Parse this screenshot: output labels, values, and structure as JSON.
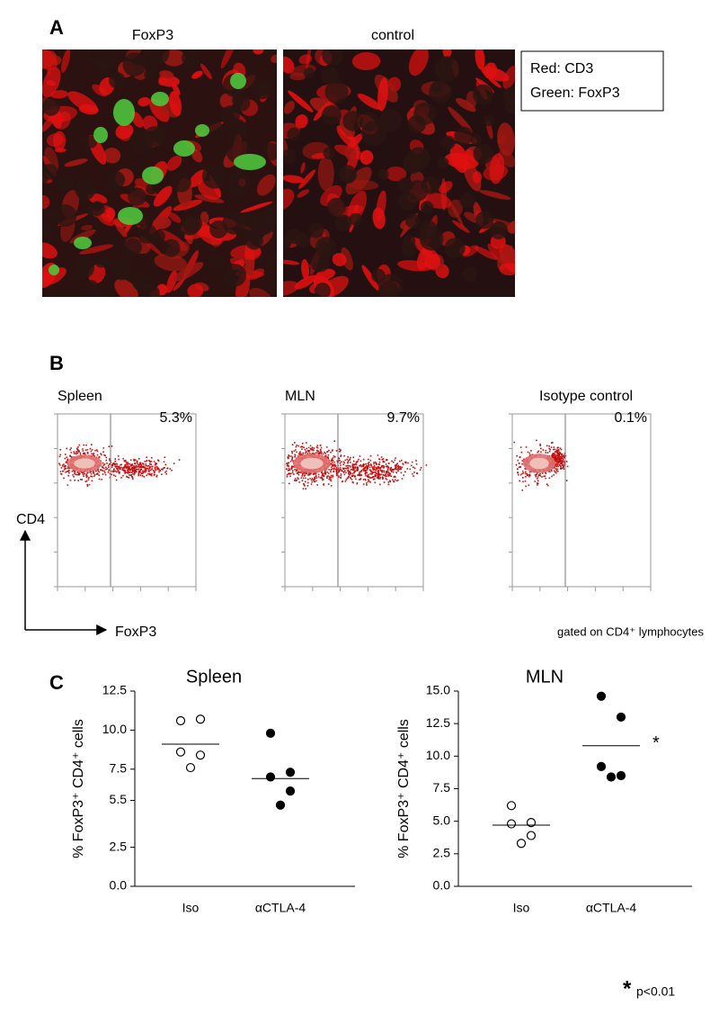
{
  "panel_a": {
    "label": "A",
    "titles": [
      "FoxP3",
      "control"
    ],
    "legend": [
      "Red: CD3",
      "Green: FoxP3"
    ]
  },
  "panel_b": {
    "label": "B",
    "plots": [
      {
        "title": "Spleen",
        "percent": "5.3%"
      },
      {
        "title": "MLN",
        "percent": "9.7%"
      },
      {
        "title": "Isotype control",
        "percent": "0.1%"
      }
    ],
    "y_axis": "CD4",
    "x_axis": "FoxP3",
    "note": "gated on CD4⁺ lymphocytes"
  },
  "panel_c": {
    "label": "C",
    "footnote_star": "*",
    "footnote": "p<0.01"
  },
  "chart_data": [
    {
      "type": "dot",
      "title": "Spleen",
      "ylabel": "% FoxP3⁺ CD4⁺ cells",
      "categories": [
        "Iso",
        "αCTLA-4"
      ],
      "values": [
        [
          10.6,
          10.7,
          8.6,
          8.4,
          7.6
        ],
        [
          9.8,
          7.3,
          7.0,
          6.1,
          5.2
        ]
      ],
      "means": [
        9.1,
        6.9
      ],
      "marker_fill": [
        "#ffffff",
        "#000000"
      ],
      "ylim": [
        0,
        12.5
      ],
      "yticks": [
        {
          "value": 0,
          "label": "0.0"
        },
        2.5,
        5.5,
        7.5,
        {
          "value": 10,
          "label": "10.0"
        },
        12.5
      ]
    },
    {
      "type": "dot",
      "title": "MLN",
      "ylabel": "% FoxP3⁺ CD4⁺ cells",
      "categories": [
        "Iso",
        "αCTLA-4"
      ],
      "values": [
        [
          6.2,
          4.9,
          4.8,
          3.9,
          3.3
        ],
        [
          14.6,
          13.0,
          9.2,
          8.5,
          8.4
        ]
      ],
      "means": [
        4.7,
        10.8
      ],
      "marker_fill": [
        "#ffffff",
        "#000000"
      ],
      "annotation": "*",
      "ylim": [
        0,
        15
      ],
      "yticks": [
        {
          "value": 0,
          "label": "0.0"
        },
        2.5,
        {
          "value": 5,
          "label": "5.0"
        },
        7.5,
        {
          "value": 10,
          "label": "10.0"
        },
        12.5,
        {
          "value": 15,
          "label": "15.0"
        }
      ]
    }
  ]
}
